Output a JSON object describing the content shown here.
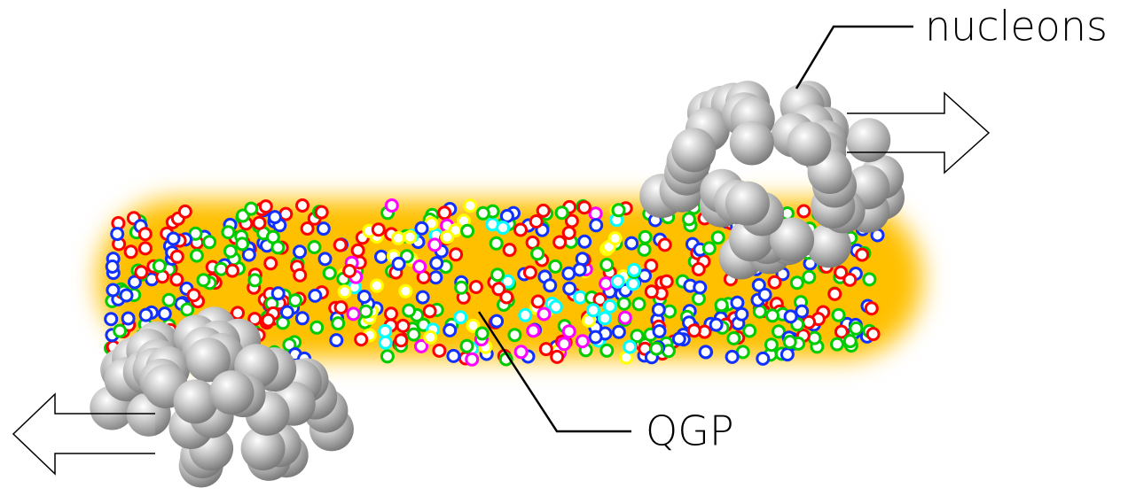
{
  "labels": {
    "nucleons": "nucleons",
    "qgp": "QGP"
  }
}
